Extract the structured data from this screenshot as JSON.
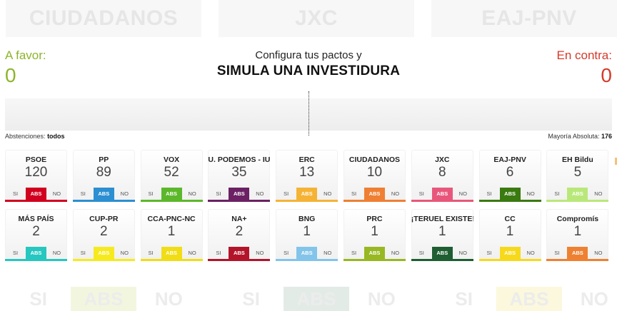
{
  "background": {
    "banners": [
      "CIUDADANOS",
      "JXC",
      "EAJ-PNV"
    ],
    "votes": [
      {
        "si": "SI",
        "abs": "ABS",
        "no": "NO",
        "color": "#f3f6df"
      },
      {
        "si": "SI",
        "abs": "ABS",
        "no": "NO",
        "color": "#e3ebe6"
      },
      {
        "si": "SI",
        "abs": "ABS",
        "no": "NO",
        "color": "#fbf8dd"
      }
    ]
  },
  "header": {
    "favor_label": "A favor:",
    "favor_count": "0",
    "contra_label": "En contra:",
    "contra_count": "0",
    "subtitle": "Configura tus pactos y",
    "title": "SIMULA UNA INVESTIDURA"
  },
  "footer": {
    "abstentions_label": "Abstenciones:",
    "abstentions_value": "todos",
    "majority_label": "Mayoría Absoluta:",
    "majority_value": "176"
  },
  "vote_labels": {
    "si": "SI",
    "abs": "ABS",
    "no": "NO"
  },
  "parties": [
    {
      "name": "PSOE",
      "seats": "120",
      "color": "#d1001f"
    },
    {
      "name": "PP",
      "seats": "89",
      "color": "#2b8fd1"
    },
    {
      "name": "VOX",
      "seats": "52",
      "color": "#5cb82a"
    },
    {
      "name": "U. PODEMOS - IU",
      "seats": "35",
      "color": "#6b2164"
    },
    {
      "name": "ERC",
      "seats": "13",
      "color": "#f5b335"
    },
    {
      "name": "CIUDADANOS",
      "seats": "10",
      "color": "#ef7f33"
    },
    {
      "name": "JXC",
      "seats": "8",
      "color": "#e8577b"
    },
    {
      "name": "EAJ-PNV",
      "seats": "6",
      "color": "#3a7a10"
    },
    {
      "name": "EH Bildu",
      "seats": "5",
      "color": "#b9e87a"
    },
    {
      "name": "MÁS PAÍS",
      "seats": "2",
      "color": "#25c7c0"
    },
    {
      "name": "CUP-PR",
      "seats": "2",
      "color": "#f6ea1f"
    },
    {
      "name": "CCA-PNC-NC",
      "seats": "1",
      "color": "#f1dd16"
    },
    {
      "name": "NA+",
      "seats": "2",
      "color": "#b3142a"
    },
    {
      "name": "BNG",
      "seats": "1",
      "color": "#83c4ea"
    },
    {
      "name": "PRC",
      "seats": "1",
      "color": "#97b822"
    },
    {
      "name": "¡TERUEL EXISTE!",
      "seats": "1",
      "color": "#1f5e32"
    },
    {
      "name": "CC",
      "seats": "1",
      "color": "#f7d91c"
    },
    {
      "name": "Compromís",
      "seats": "1",
      "color": "#ee8131"
    }
  ]
}
